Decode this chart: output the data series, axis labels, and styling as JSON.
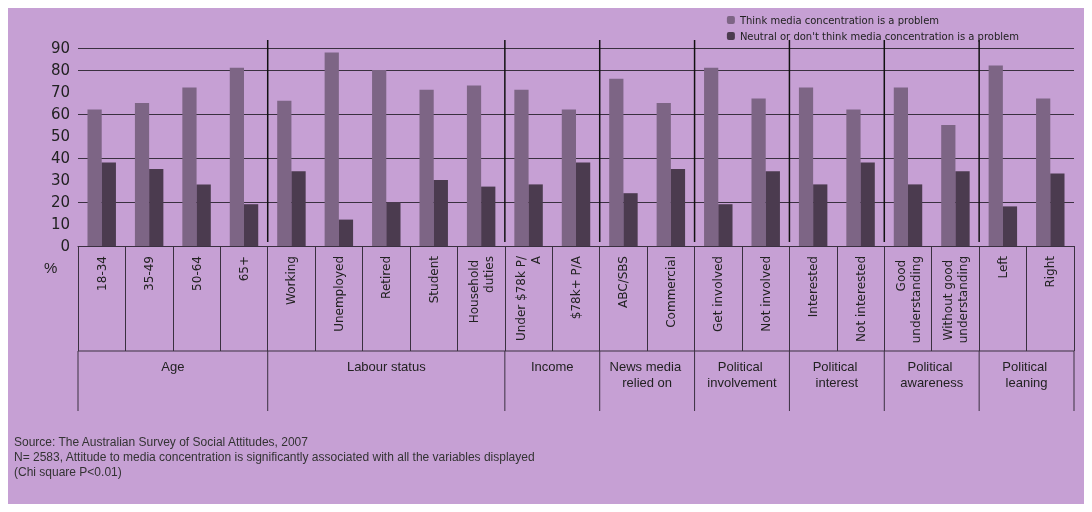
{
  "chart_data": {
    "type": "bar",
    "ylabel": "%",
    "categories": [
      "18-34",
      "35-49",
      "50-64",
      "65+",
      "Working",
      "Unemployed",
      "Retired",
      "Student",
      "Household duties",
      "Under $78k P/A",
      "$78k+ P/A",
      "ABC/SBS",
      "Commercial",
      "Get involved",
      "Not involved",
      "Interested",
      "Not interested",
      "Good understanding",
      "Without good understanding",
      "Left",
      "Right"
    ],
    "series": [
      {
        "name": "Think media concentration is a problem",
        "color": "#7d6585",
        "values": [
          62,
          65,
          72,
          81,
          66,
          88,
          80,
          71,
          73,
          71,
          62,
          76,
          65,
          81,
          67,
          72,
          62,
          72,
          55,
          82,
          67
        ]
      },
      {
        "name": "Neutral or don't think media concentration is a problem",
        "color": "#4b3b4f",
        "values": [
          38,
          35,
          28,
          19,
          34,
          12,
          20,
          30,
          27,
          28,
          38,
          24,
          35,
          19,
          34,
          28,
          38,
          28,
          34,
          18,
          33
        ]
      }
    ],
    "ylim": [
      0,
      90
    ],
    "yticks": [
      0,
      10,
      20,
      30,
      40,
      50,
      60,
      70,
      80,
      90
    ],
    "grid": "y",
    "legend": "top right",
    "annotations": [
      "Age",
      "Labour status",
      "Income",
      "News media relied on",
      "Political involvement",
      "Political interest",
      "Political awareness",
      "Political leaning",
      "Source: The Australian Survey of Social Attitudes, 2007",
      "N= 2583, Attitude to media concentration is significantly associated with all the variables displayed",
      "(Chi square P<0.01)"
    ]
  }
}
